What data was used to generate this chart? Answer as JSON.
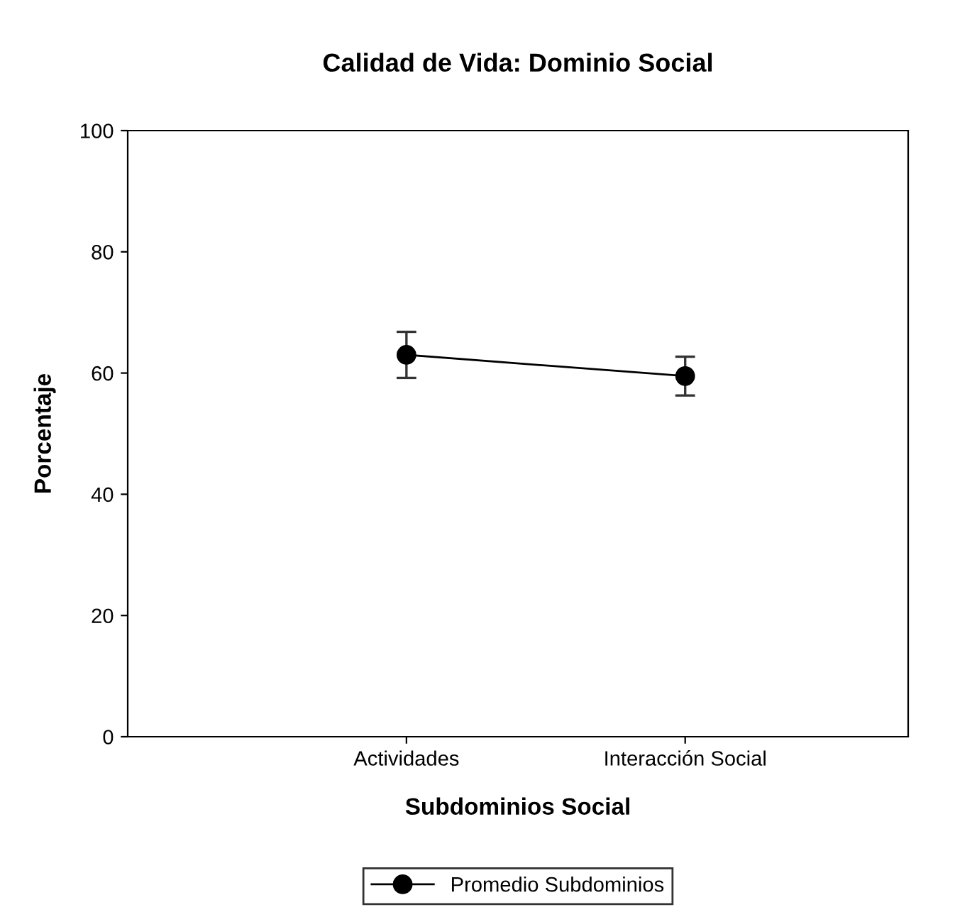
{
  "chart_data": {
    "type": "line",
    "title": "Calidad de Vida: Dominio Social",
    "xlabel": "Subdominios Social",
    "ylabel": "Porcentaje",
    "categories": [
      "Actividades",
      "Interacción Social"
    ],
    "series": [
      {
        "name": "Promedio Subdominios",
        "color": "#000000",
        "values": [
          63.0,
          59.5
        ],
        "errors": [
          3.8,
          3.2
        ]
      }
    ],
    "ylim": [
      0,
      100
    ],
    "yticks": [
      0,
      20,
      40,
      60,
      80,
      100
    ],
    "grid": false,
    "legend": "bottom",
    "marker": "circle",
    "line_style": "solid"
  }
}
